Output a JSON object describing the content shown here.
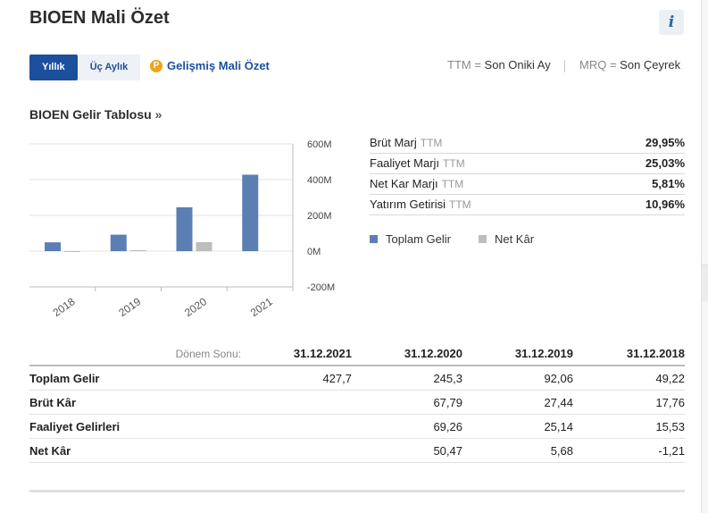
{
  "header": {
    "title": "BIOEN Mali Özet",
    "info_icon": "i"
  },
  "tabs": [
    {
      "label": "Yıllık",
      "active": true
    },
    {
      "label": "Üç Aylık",
      "active": false
    }
  ],
  "advanced_link": {
    "icon": "P",
    "label": "Gelişmiş Mali Özet"
  },
  "abbrev_legend": {
    "ttm_key": "TTM",
    "ttm_eq": " = ",
    "ttm_value": "Son Oniki Ay",
    "mrq_key": "MRQ",
    "mrq_eq": " = ",
    "mrq_value": "Son Çeyrek"
  },
  "income_section": {
    "title": "BIOEN Gelir Tablosu",
    "arrow": "»"
  },
  "colors": {
    "revenue": "#5b7fb3",
    "net_profit": "#bdbdbd",
    "accent": "#1c4f9c"
  },
  "chart_data": {
    "type": "bar",
    "categories": [
      "2018",
      "2019",
      "2020",
      "2021"
    ],
    "series": [
      {
        "name": "Toplam Gelir",
        "values": [
          49.22,
          92.06,
          245.3,
          427.7
        ]
      },
      {
        "name": "Net Kâr",
        "values": [
          -1.21,
          5.68,
          50.47,
          null
        ]
      }
    ],
    "ylim": [
      -200,
      600
    ],
    "yticks": [
      "600M",
      "400M",
      "200M",
      "0M",
      "-200M"
    ],
    "grid": true,
    "y_axis_side": "right"
  },
  "ratios": [
    {
      "label": "Brüt Marj",
      "ttm": "TTM",
      "value": "29,95%"
    },
    {
      "label": "Faaliyet Marjı",
      "ttm": "TTM",
      "value": "25,03%"
    },
    {
      "label": "Net Kar Marjı",
      "ttm": "TTM",
      "value": "5,81%"
    },
    {
      "label": "Yatırım Getirisi",
      "ttm": "TTM",
      "value": "10,96%"
    }
  ],
  "legend": [
    {
      "label": "Toplam Gelir"
    },
    {
      "label": "Net Kâr"
    }
  ],
  "table": {
    "period_label": "Dönem Sonu:",
    "periods": [
      "31.12.2021",
      "31.12.2020",
      "31.12.2019",
      "31.12.2018"
    ],
    "rows": [
      {
        "label": "Toplam Gelir",
        "values": [
          "427,7",
          "245,3",
          "92,06",
          "49,22"
        ]
      },
      {
        "label": "Brüt Kâr",
        "values": [
          "",
          "67,79",
          "27,44",
          "17,76"
        ]
      },
      {
        "label": "Faaliyet Gelirleri",
        "values": [
          "",
          "69,26",
          "25,14",
          "15,53"
        ]
      },
      {
        "label": "Net Kâr",
        "values": [
          "",
          "50,47",
          "5,68",
          "-1,21"
        ]
      }
    ]
  }
}
